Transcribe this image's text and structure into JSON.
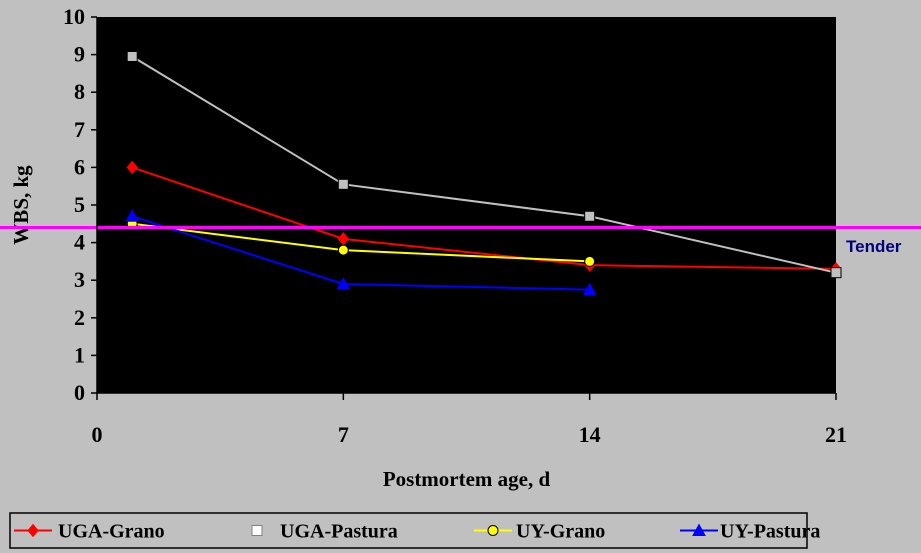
{
  "chart_data": {
    "type": "line",
    "title": "",
    "xlabel": "Postmortem age, d",
    "ylabel": "WBS, kg",
    "xlim": [
      0,
      21
    ],
    "ylim": [
      0,
      10
    ],
    "x_ticks": [
      0,
      7,
      14,
      21
    ],
    "y_ticks": [
      0,
      1,
      2,
      3,
      4,
      5,
      6,
      7,
      8,
      9,
      10
    ],
    "grid": false,
    "plot_background": "#000000",
    "legend_position": "bottom",
    "series": [
      {
        "name": "UGA-Grano",
        "color": "#ff0000",
        "marker": "diamond",
        "x": [
          1,
          7,
          14,
          21
        ],
        "y": [
          6.0,
          4.1,
          3.4,
          3.3
        ]
      },
      {
        "name": "UGA-Pastura",
        "color": "#c0c0c0",
        "marker": "square",
        "x": [
          1,
          7,
          14,
          21
        ],
        "y": [
          8.95,
          5.55,
          4.7,
          3.2
        ]
      },
      {
        "name": "UY-Grano",
        "color": "#ffff00",
        "marker": "circle",
        "x": [
          1,
          7,
          14
        ],
        "y": [
          4.5,
          3.8,
          3.5
        ]
      },
      {
        "name": "UY-Pastura",
        "color": "#0000ff",
        "marker": "triangle",
        "x": [
          1,
          7,
          14
        ],
        "y": [
          4.7,
          2.9,
          2.75
        ]
      }
    ],
    "reference_line": {
      "y": 4.4,
      "label": "Tender",
      "color": "#ff00ff",
      "label_color": "#000080"
    }
  }
}
